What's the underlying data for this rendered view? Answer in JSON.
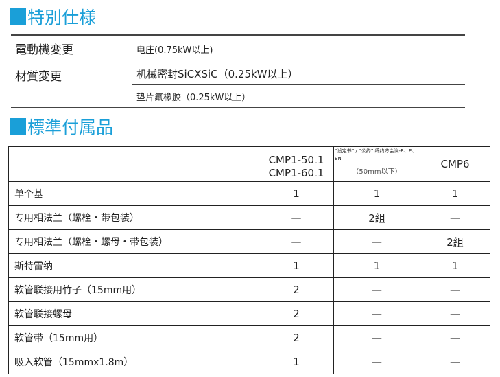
{
  "special_spec": {
    "title": "特別仕様",
    "rows": [
      {
        "label": "電動機変更",
        "values": [
          "电庄(0.75kW以上)"
        ]
      },
      {
        "label": "材質変更",
        "values": [
          "机械密封SiCXSiC（0.25kW以上）",
          "垫片氟橡胶（0.25kW以上）"
        ]
      }
    ]
  },
  "accessories": {
    "title": "標準付属品",
    "headers": [
      "",
      "CMP1-50.1\nCMP1-60.1",
      "“设定书” / “公约” 缔约方会议-R、E、EN",
      "CMP6"
    ],
    "header_sub": "（50mm以下）",
    "rows": [
      {
        "name": "单个基",
        "v": [
          "1",
          "1",
          "1"
        ]
      },
      {
        "name": "专用相法兰（螺栓・带包装）",
        "v": [
          "—",
          "2組",
          "—"
        ]
      },
      {
        "name": "专用相法兰（螺栓・螺母・带包装）",
        "v": [
          "—",
          "—",
          "2組"
        ]
      },
      {
        "name": "斯特雷纳",
        "v": [
          "1",
          "1",
          "1"
        ]
      },
      {
        "name": "软管联接用竹子（15mm用）",
        "v": [
          "2",
          "—",
          "—"
        ]
      },
      {
        "name": "软管联接螺母",
        "v": [
          "2",
          "—",
          "—"
        ]
      },
      {
        "name": "软管带（15mm用）",
        "v": [
          "2",
          "—",
          "—"
        ]
      },
      {
        "name": "吸入软管（15mmx1.8m）",
        "v": [
          "1",
          "—",
          "—"
        ]
      }
    ]
  },
  "colors": {
    "accent": "#1a9fd8"
  }
}
